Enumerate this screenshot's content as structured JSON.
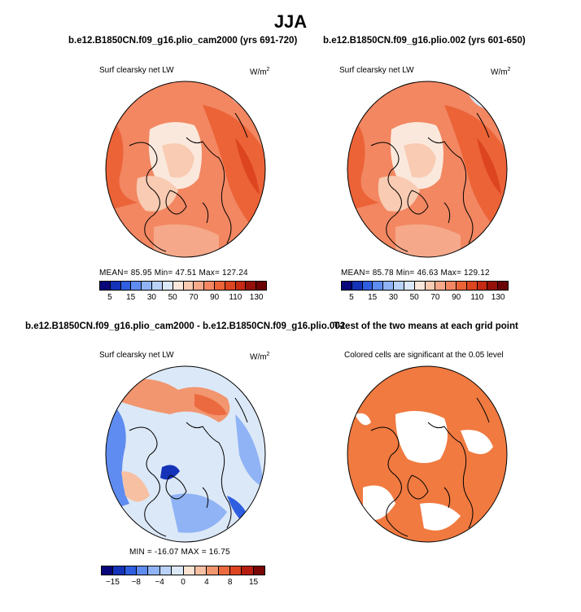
{
  "season": "JJA",
  "colors": {
    "coast": "#000000",
    "sig": "#f07a40",
    "outline": "#000000"
  },
  "panels": {
    "p1": {
      "title": "b.e12.B1850CN.f09_g16.plio_cam2000 (yrs 691-720)",
      "variable": "Surf clearsky net LW",
      "units": "W/m",
      "units_sup": "2",
      "stats": "MEAN=   85.95   Min=   47.51   Max=  127.24"
    },
    "p2": {
      "title": "b.e12.B1850CN.f09_g16.plio.002 (yrs 601-650)",
      "variable": "Surf clearsky net LW",
      "units": "W/m",
      "units_sup": "2",
      "stats": "MEAN=   85.78   Min=   46.63   Max=  129.12"
    },
    "p3": {
      "title": "b.e12.B1850CN.f09_g16.plio_cam2000 - b.e12.B1850CN.f09_g16.plio.002",
      "variable": "Surf clearsky net LW",
      "units": "W/m",
      "units_sup": "2",
      "stats": "MIN = -16.07  MAX =  16.75"
    },
    "p4": {
      "title": "T-test of the two means at each grid point",
      "subtitle": "Colored cells are significant at the 0.05 level"
    }
  },
  "chart_data": [
    {
      "type": "heatmap",
      "title": "b.e12.B1850CN.f09_g16.plio_cam2000 (yrs 691-720)",
      "variable": "Surf clearsky net LW",
      "units": "W/m^2",
      "mean": 85.95,
      "min": 47.51,
      "max": 127.24,
      "colorbar_levels": [
        5,
        10,
        15,
        20,
        30,
        40,
        50,
        60,
        70,
        80,
        90,
        100,
        110,
        120,
        130
      ],
      "colorbar_tick_labels": [
        "5",
        "15",
        "30",
        "50",
        "70",
        "90",
        "110",
        "130"
      ],
      "colorbar_colors": [
        "#08067a",
        "#1433b8",
        "#2f5fe0",
        "#5f8cf0",
        "#8fb3f5",
        "#b9d3f8",
        "#dbe8f7",
        "#fbe8dc",
        "#f8cbb2",
        "#f5a98a",
        "#f28762",
        "#ec6338",
        "#dd4420",
        "#c62a14",
        "#951008",
        "#6b0404"
      ]
    },
    {
      "type": "heatmap",
      "title": "b.e12.B1850CN.f09_g16.plio.002 (yrs 601-650)",
      "variable": "Surf clearsky net LW",
      "units": "W/m^2",
      "mean": 85.78,
      "min": 46.63,
      "max": 129.12,
      "colorbar_levels": [
        5,
        10,
        15,
        20,
        30,
        40,
        50,
        60,
        70,
        80,
        90,
        100,
        110,
        120,
        130
      ],
      "colorbar_tick_labels": [
        "5",
        "15",
        "30",
        "50",
        "70",
        "90",
        "110",
        "130"
      ],
      "colorbar_colors": [
        "#08067a",
        "#1433b8",
        "#2f5fe0",
        "#5f8cf0",
        "#8fb3f5",
        "#b9d3f8",
        "#dbe8f7",
        "#fbe8dc",
        "#f8cbb2",
        "#f5a98a",
        "#f28762",
        "#ec6338",
        "#dd4420",
        "#c62a14",
        "#951008",
        "#6b0404"
      ]
    },
    {
      "type": "heatmap",
      "title": "b.e12.B1850CN.f09_g16.plio_cam2000 - b.e12.B1850CN.f09_g16.plio.002",
      "variable": "Surf clearsky net LW",
      "units": "W/m^2",
      "min": -16.07,
      "max": 16.75,
      "colorbar_levels": [
        -15,
        -12,
        -8,
        -6,
        -4,
        -2,
        0,
        2,
        4,
        6,
        8,
        12,
        15
      ],
      "colorbar_tick_labels": [
        "-15",
        "-8",
        "-4",
        "0",
        "4",
        "8",
        "15"
      ],
      "colorbar_colors": [
        "#08067a",
        "#1433b8",
        "#2f5fe0",
        "#5f8cf0",
        "#8fb3f5",
        "#b9d3f8",
        "#dbe8f7",
        "#fbe3d4",
        "#f8c0a2",
        "#f29670",
        "#ec6a40",
        "#dd4420",
        "#b81e10",
        "#7a0606"
      ]
    },
    {
      "type": "heatmap",
      "title": "T-test of the two means at each grid point",
      "subtitle": "Colored cells are significant at the 0.05 level",
      "significance_level": 0.05
    }
  ]
}
